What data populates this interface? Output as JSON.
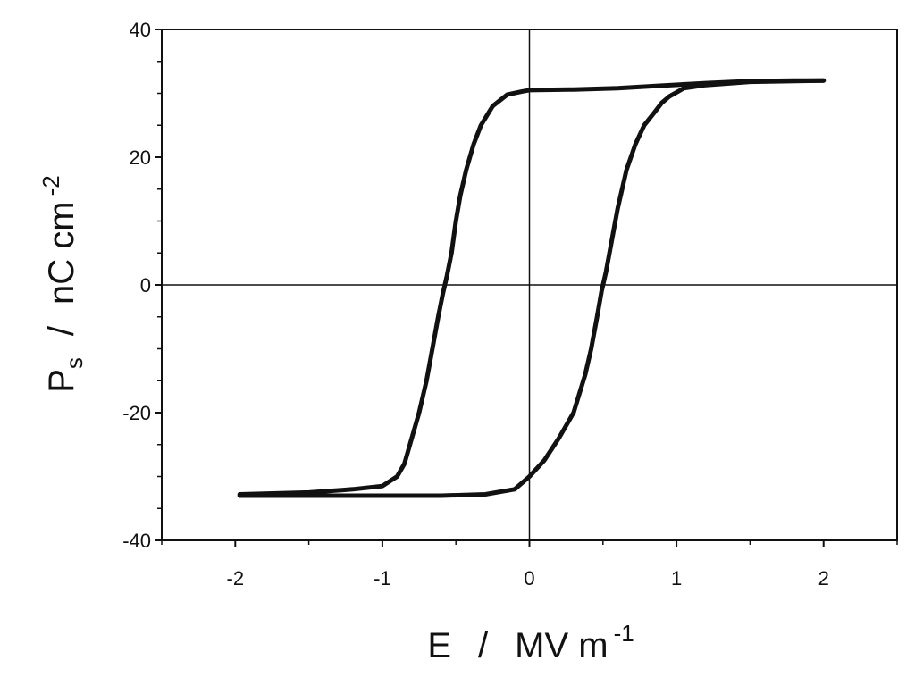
{
  "chart_data": {
    "type": "line",
    "title": "",
    "xlabel": {
      "main": "E",
      "sep": "/",
      "unit": "MV m",
      "exp": "-1"
    },
    "ylabel": {
      "main": "P",
      "sub": "s",
      "sep": "/",
      "unit": "nC cm",
      "exp": "-2"
    },
    "xlim": [
      -2.5,
      2.5
    ],
    "ylim": [
      -40,
      40
    ],
    "xticks": [
      -2,
      -1,
      0,
      1,
      2
    ],
    "xtick_labels": [
      "-2",
      "-1",
      "0",
      "1",
      "2"
    ],
    "yticks": [
      -40,
      -20,
      0,
      20,
      40
    ],
    "ytick_labels": [
      "-40",
      "-20",
      "0",
      "20",
      "40"
    ],
    "grid": false,
    "zero_lines": true,
    "line_color": "#111111",
    "series": [
      {
        "x": [
          -1.97,
          -1.5,
          -1.2,
          -1.0,
          -0.9,
          -0.85,
          -0.8,
          -0.75,
          -0.7,
          -0.66,
          -0.62,
          -0.59,
          -0.56,
          -0.53,
          -0.5,
          -0.47,
          -0.43,
          -0.38,
          -0.33,
          -0.25,
          -0.15,
          -0.05,
          0.0,
          0.3,
          0.6,
          0.9,
          1.2,
          1.5,
          1.8,
          2.0
        ],
        "y": [
          -32.8,
          -32.5,
          -32.0,
          -31.5,
          -30.0,
          -28.0,
          -24.0,
          -20.0,
          -15.0,
          -10.0,
          -5.0,
          -1.5,
          1.5,
          5.0,
          10.0,
          14.0,
          18.0,
          22.0,
          25.0,
          28.0,
          29.8,
          30.3,
          30.5,
          30.6,
          30.8,
          31.2,
          31.6,
          31.9,
          32.0,
          32.0
        ]
      },
      {
        "x": [
          2.0,
          1.5,
          1.2,
          1.05,
          0.95,
          0.9,
          0.85,
          0.78,
          0.72,
          0.66,
          0.6,
          0.56,
          0.52,
          0.49,
          0.46,
          0.42,
          0.38,
          0.3,
          0.2,
          0.1,
          0.0,
          -0.1,
          -0.3,
          -0.6,
          -1.0,
          -1.5,
          -1.97
        ],
        "y": [
          32.0,
          31.8,
          31.3,
          30.8,
          29.5,
          28.5,
          27.0,
          25.0,
          22.0,
          18.0,
          12.0,
          7.0,
          2.0,
          -1.0,
          -5.0,
          -10.0,
          -14.0,
          -20.0,
          -24.0,
          -27.5,
          -30.0,
          -32.0,
          -32.8,
          -33.0,
          -33.0,
          -33.0,
          -33.0
        ]
      }
    ]
  }
}
